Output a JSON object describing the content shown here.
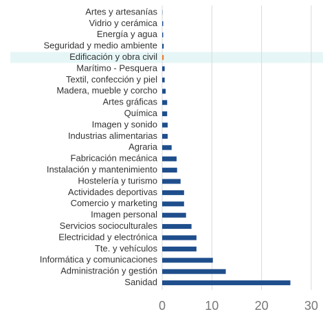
{
  "chart_data": {
    "type": "bar",
    "orientation": "horizontal",
    "categories": [
      "Artes y artesanías",
      "Vidrio y cerámica",
      "Energía y agua",
      "Seguridad y medio ambiente",
      "Edificación y obra civil",
      "Marítimo - Pesquera",
      "Textil, confección y piel",
      "Madera, mueble y corcho",
      "Artes gráficas",
      "Química",
      "Imagen y sonido",
      "Industrias alimentarias",
      "Agraria",
      "Fabricación mecánica",
      "Instalación y mantenimiento",
      "Hostelería y turismo",
      "Actividades deportivas",
      "Comercio y marketing",
      "Imagen personal",
      "Servicios socioculturales",
      "Electricidad y electrónica",
      "Tte. y vehículos",
      "Informática y comunicaciones",
      "Administración y gestión",
      "Sanidad"
    ],
    "values": [
      0.05,
      0.2,
      0.2,
      0.3,
      0.3,
      0.5,
      0.5,
      0.7,
      1.0,
      1.0,
      1.1,
      1.1,
      1.9,
      2.9,
      3.0,
      3.7,
      4.4,
      4.4,
      4.8,
      5.9,
      6.9,
      6.9,
      10.2,
      12.8,
      25.8
    ],
    "colors": [
      "#1f4e8c",
      "#1f4e8c",
      "#1f4e8c",
      "#1f4e8c",
      "#ed7d31",
      "#1f4e8c",
      "#1f4e8c",
      "#1f4e8c",
      "#1f4e8c",
      "#1f4e8c",
      "#1f4e8c",
      "#1f4e8c",
      "#1f4e8c",
      "#1f4e8c",
      "#1f4e8c",
      "#1f4e8c",
      "#1f4e8c",
      "#1f4e8c",
      "#1f4e8c",
      "#1f4e8c",
      "#1f4e8c",
      "#1f4e8c",
      "#1f4e8c",
      "#1f4e8c",
      "#1f4e8c"
    ],
    "highlight_band": {
      "index": 4,
      "color": "#e6f6f7"
    },
    "xlim": [
      0,
      32
    ],
    "xticks": [
      0,
      10,
      20,
      30
    ],
    "grid": true
  }
}
